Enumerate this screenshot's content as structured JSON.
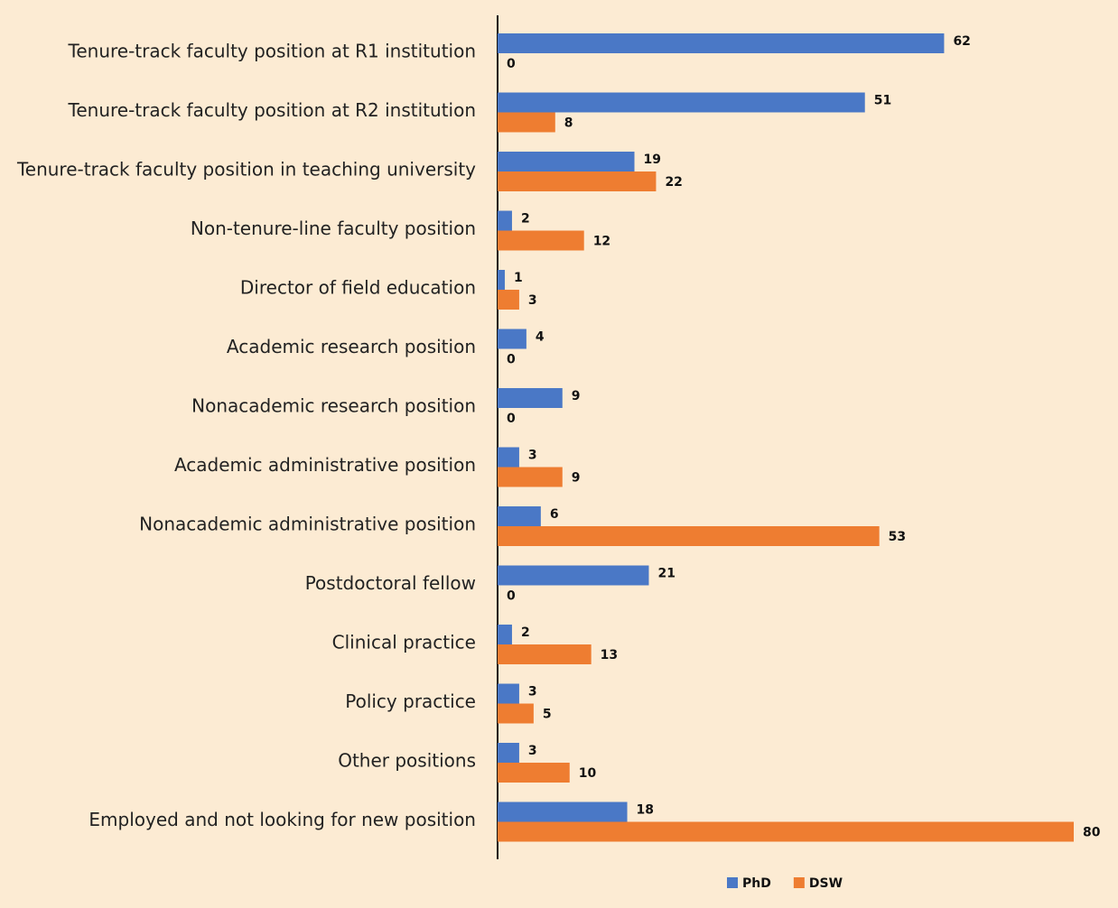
{
  "chart_data": {
    "type": "bar",
    "orientation": "horizontal",
    "categories": [
      "Tenure-track faculty position at R1 institution",
      "Tenure-track faculty position at R2 institution",
      "Tenure-track faculty position in teaching university",
      "Non-tenure-line faculty position",
      "Director of field education",
      "Academic research position",
      "Nonacademic research position",
      "Academic administrative position",
      "Nonacademic administrative position",
      "Postdoctoral fellow",
      "Clinical practice",
      "Policy practice",
      "Other positions",
      "Employed and not looking for new position"
    ],
    "series": [
      {
        "name": "PhD",
        "color": "#4a78c6",
        "values": [
          62,
          51,
          19,
          2,
          1,
          4,
          9,
          3,
          6,
          21,
          2,
          3,
          3,
          18
        ]
      },
      {
        "name": "DSW",
        "color": "#ee7d31",
        "values": [
          0,
          8,
          22,
          12,
          3,
          0,
          0,
          9,
          53,
          0,
          13,
          5,
          10,
          80
        ]
      }
    ],
    "xlim": [
      0,
      80
    ],
    "legend": "bottom",
    "grid": false
  }
}
